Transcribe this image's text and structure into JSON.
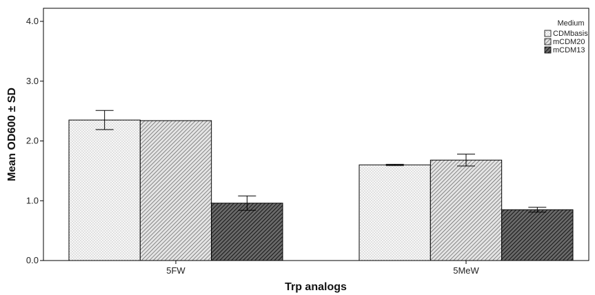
{
  "chart_data": {
    "type": "bar",
    "xlabel": "Trp analogs",
    "ylabel": "Mean OD600 ± SD",
    "ylim": [
      0,
      4.0
    ],
    "yticks": [
      "0.0",
      "1.0",
      "2.0",
      "3.0",
      "4.0"
    ],
    "categories": [
      "5FW",
      "5MeW"
    ],
    "legend_title": "Medium",
    "legend_position": "top-right",
    "grid": false,
    "series": [
      {
        "name": "CDMbasis",
        "values": [
          2.35,
          1.6
        ],
        "error": [
          0.16,
          0.01
        ],
        "color": "#f2f2f2",
        "pattern": "dots"
      },
      {
        "name": "mCDM20",
        "values": [
          2.34,
          1.68
        ],
        "error": [
          0.0,
          0.1
        ],
        "color": "#c8c8c8",
        "pattern": "diagonal-light"
      },
      {
        "name": "mCDM13",
        "values": [
          0.96,
          0.85
        ],
        "error": [
          0.12,
          0.04
        ],
        "color": "#4a4a4a",
        "pattern": "diagonal-dark"
      }
    ]
  }
}
